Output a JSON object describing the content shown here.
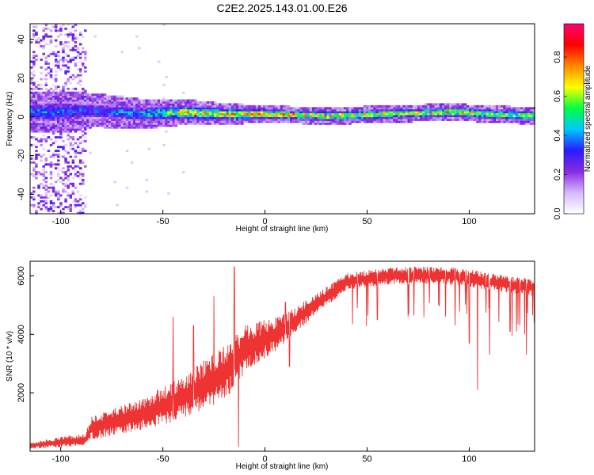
{
  "figure": {
    "title": "C2E2.2025.143.01.00.E26"
  },
  "chart_data": [
    {
      "type": "heatmap",
      "name": "spectrogram",
      "xlabel": "Height of straight line (km)",
      "ylabel": "Frequency (Hz)",
      "xlim": [
        -115,
        132
      ],
      "ylim": [
        -50,
        48
      ],
      "xticks": [
        -100,
        -50,
        0,
        50,
        100
      ],
      "yticks": [
        -40,
        -20,
        0,
        20,
        40
      ],
      "colorbar": {
        "label": "Normalized spectral amplitude",
        "range": [
          0,
          0.97
        ],
        "ticks": [
          0.0,
          0.2,
          0.4,
          0.6,
          0.8
        ],
        "colors": [
          "#ffffff",
          "#d6b8ff",
          "#8a2be2",
          "#2a1aff",
          "#00c8ff",
          "#00ff40",
          "#ffff00",
          "#ff8800",
          "#ff0000",
          "#ff0077"
        ]
      },
      "band": [
        {
          "x": -100,
          "center": 2,
          "halfwidth": 5,
          "peak": 0.45
        },
        {
          "x": -85,
          "center": 3,
          "halfwidth": 4,
          "peak": 0.4
        },
        {
          "x": -60,
          "center": 1,
          "halfwidth": 3.5,
          "peak": 0.55
        },
        {
          "x": -40,
          "center": 2,
          "halfwidth": 3,
          "peak": 0.8
        },
        {
          "x": -20,
          "center": 1,
          "halfwidth": 2.5,
          "peak": 0.85
        },
        {
          "x": 0,
          "center": 1,
          "halfwidth": 2,
          "peak": 0.9
        },
        {
          "x": 30,
          "center": 0,
          "halfwidth": 2,
          "peak": 0.85
        },
        {
          "x": 60,
          "center": 1,
          "halfwidth": 2,
          "peak": 0.8
        },
        {
          "x": 90,
          "center": 2,
          "halfwidth": 2,
          "peak": 0.85
        },
        {
          "x": 132,
          "center": 0,
          "halfwidth": 2,
          "peak": 0.7
        }
      ],
      "noise_region": {
        "x": [
          -115,
          -88
        ],
        "peak": 0.3
      }
    },
    {
      "type": "line",
      "name": "snr",
      "xlabel": "Height of straight line (km)",
      "ylabel": "SNR (10 * v/v)",
      "xlim": [
        -115,
        132
      ],
      "ylim": [
        0,
        6500
      ],
      "xticks": [
        -100,
        -50,
        0,
        50,
        100
      ],
      "yticks": [
        2000,
        4000,
        6000
      ],
      "color": "#ee3333",
      "envelope": [
        {
          "x": -115,
          "base": 80,
          "top": 300
        },
        {
          "x": -100,
          "base": 120,
          "top": 500
        },
        {
          "x": -88,
          "base": 200,
          "top": 600
        },
        {
          "x": -85,
          "base": 400,
          "top": 1200
        },
        {
          "x": -60,
          "base": 700,
          "top": 1800
        },
        {
          "x": -40,
          "base": 1100,
          "top": 2600
        },
        {
          "x": -20,
          "base": 1700,
          "top": 3600
        },
        {
          "x": -10,
          "base": 2600,
          "top": 4300
        },
        {
          "x": 10,
          "base": 3700,
          "top": 4700
        },
        {
          "x": 25,
          "base": 4700,
          "top": 5400
        },
        {
          "x": 40,
          "base": 5500,
          "top": 6100
        },
        {
          "x": 60,
          "base": 5700,
          "top": 6300
        },
        {
          "x": 90,
          "base": 5700,
          "top": 6350
        },
        {
          "x": 110,
          "base": 5500,
          "top": 6100
        },
        {
          "x": 132,
          "base": 5300,
          "top": 5900
        }
      ],
      "spikes": [
        {
          "x": -15,
          "y": 6300
        },
        {
          "x": -13,
          "y": 150
        },
        {
          "x": -45,
          "y": 4600
        },
        {
          "x": -35,
          "y": 4300
        },
        {
          "x": -25,
          "y": 5300
        },
        {
          "x": 12,
          "y": 2900
        },
        {
          "x": 10,
          "y": 5100
        },
        {
          "x": 55,
          "y": 4500
        },
        {
          "x": 70,
          "y": 4600
        },
        {
          "x": 85,
          "y": 5000
        },
        {
          "x": 100,
          "y": 3700
        },
        {
          "x": 104,
          "y": 2100
        },
        {
          "x": 110,
          "y": 3300
        },
        {
          "x": 120,
          "y": 4100
        },
        {
          "x": 128,
          "y": 3300
        }
      ]
    }
  ]
}
